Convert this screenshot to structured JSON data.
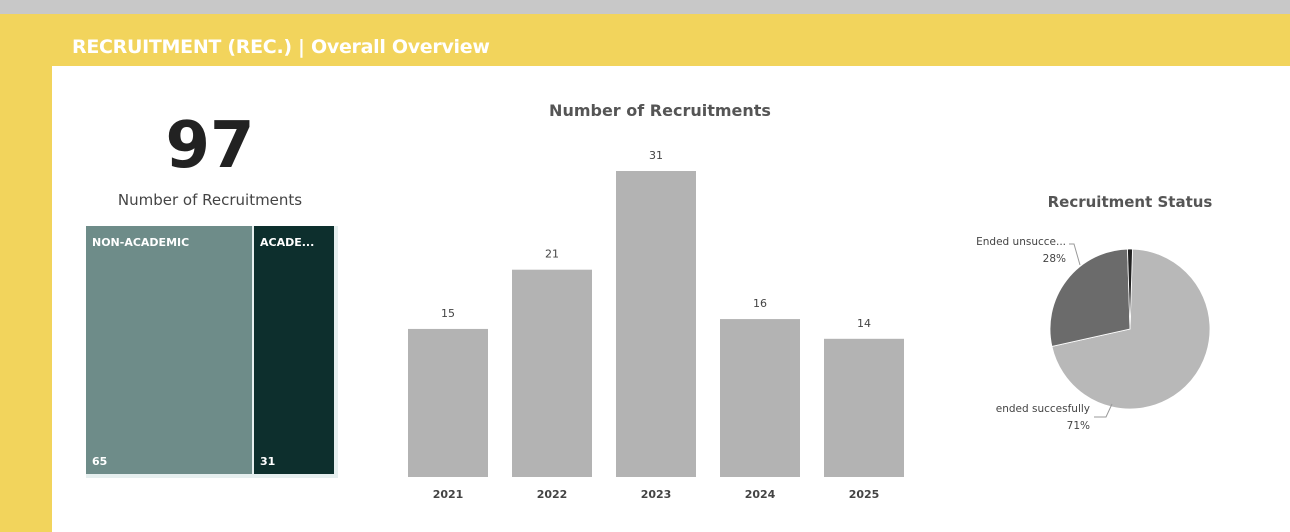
{
  "header": {
    "title": "RECRUITMENT (REC.) | Overall Overview"
  },
  "kpi": {
    "value": "97",
    "label": "Number of Recruitments"
  },
  "treemap": {
    "items": [
      {
        "name": "NON-ACADEMIC",
        "value": 65,
        "color": "#6e8c89"
      },
      {
        "name": "ACADE...",
        "value": 31,
        "color": "#0d2f2d"
      }
    ]
  },
  "colors": {
    "bar": "#b3b3b3",
    "pie_success": "#b8b8b8",
    "pie_unsuccess": "#6b6b6b",
    "pie_other": "#222222",
    "header": "#f2d45c"
  },
  "chart_data": [
    {
      "type": "bar",
      "title": "Number of Recruitments",
      "categories": [
        "2021",
        "2022",
        "2023",
        "2024",
        "2025"
      ],
      "values": [
        15,
        21,
        31,
        16,
        14
      ],
      "ylim": [
        0,
        31
      ],
      "grid": false
    },
    {
      "type": "pie",
      "title": "Recruitment Status",
      "slices": [
        {
          "label": "ended succesfully",
          "value": 71,
          "pct_label": "71%"
        },
        {
          "label": "Ended unsucce...",
          "value": 28,
          "pct_label": "28%"
        },
        {
          "label": "",
          "value": 1,
          "pct_label": ""
        }
      ]
    }
  ]
}
